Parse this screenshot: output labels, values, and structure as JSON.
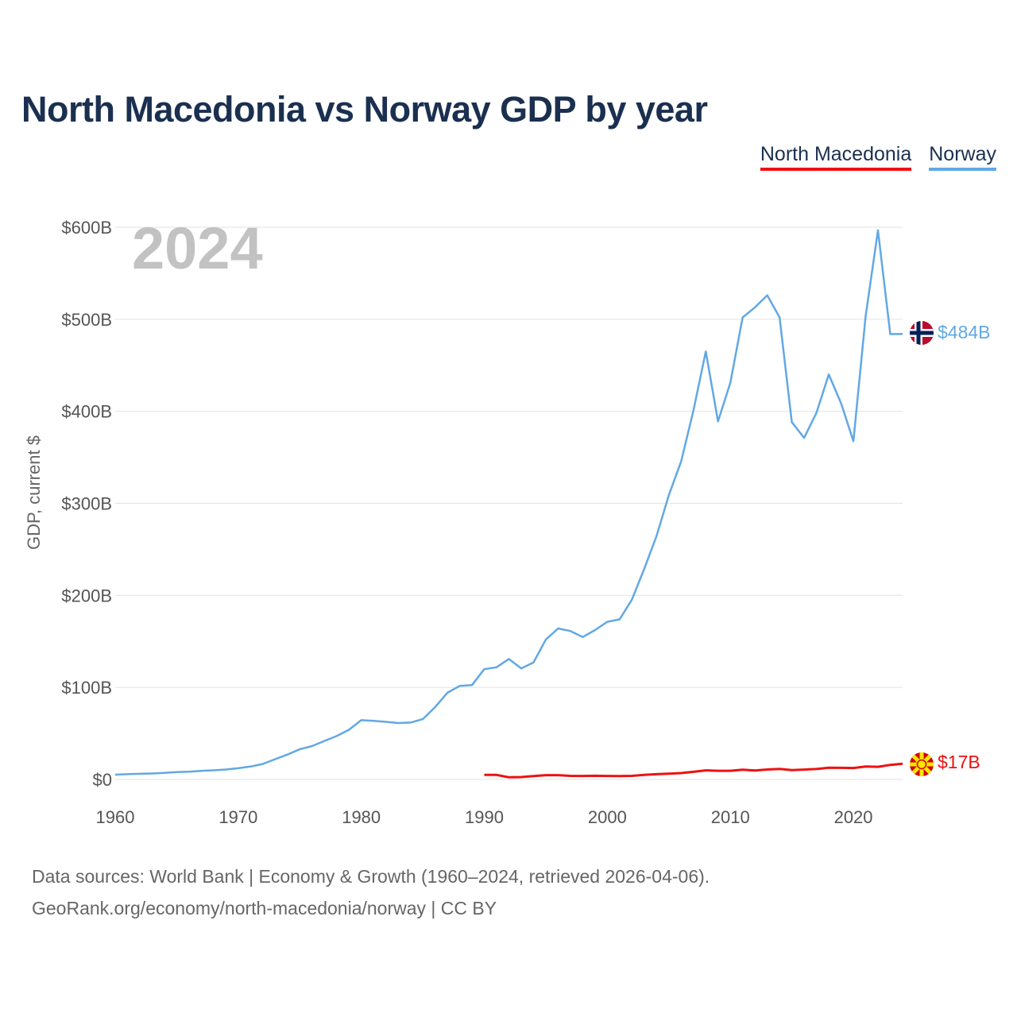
{
  "title": "North Macedonia vs Norway GDP by year",
  "chart_data": {
    "type": "line",
    "title": "North Macedonia vs Norway GDP by year",
    "ylabel": "GDP, current $",
    "xlabel": "",
    "current_year_label": "2024",
    "xlim": [
      1960,
      2024
    ],
    "ylim": [
      0,
      600
    ],
    "y_unit": "billion US$",
    "x_ticks": [
      1960,
      1970,
      1980,
      1990,
      2000,
      2010,
      2020
    ],
    "x_tick_labels": [
      "1960",
      "1970",
      "1980",
      "1990",
      "2000",
      "2010",
      "2020"
    ],
    "y_ticks": [
      0,
      100,
      200,
      300,
      400,
      500,
      600
    ],
    "y_tick_labels": [
      "$0",
      "$100B",
      "$200B",
      "$300B",
      "$400B",
      "$500B",
      "$600B"
    ],
    "grid": true,
    "legend_position": "top-right",
    "series": [
      {
        "name": "North Macedonia",
        "color": "#ee1111",
        "end_label": "$17B",
        "flag_icon": "north-macedonia-flag-icon",
        "x": [
          1990,
          1991,
          1992,
          1993,
          1994,
          1995,
          1996,
          1997,
          1998,
          1999,
          2000,
          2001,
          2002,
          2003,
          2004,
          2005,
          2006,
          2007,
          2008,
          2009,
          2010,
          2011,
          2012,
          2013,
          2014,
          2015,
          2016,
          2017,
          2018,
          2019,
          2020,
          2021,
          2022,
          2023,
          2024
        ],
        "values": [
          5.0,
          4.9,
          2.3,
          2.6,
          3.6,
          4.7,
          4.7,
          3.9,
          3.8,
          4.0,
          3.8,
          3.7,
          3.9,
          4.9,
          5.7,
          6.3,
          6.9,
          8.3,
          9.8,
          9.4,
          9.4,
          10.5,
          9.7,
          10.8,
          11.4,
          10.1,
          10.7,
          11.3,
          12.7,
          12.6,
          12.4,
          14.0,
          13.7,
          15.8,
          17.0
        ]
      },
      {
        "name": "Norway",
        "color": "#62a8e5",
        "end_label": "$484B",
        "flag_icon": "norway-flag-icon",
        "x": [
          1960,
          1961,
          1962,
          1963,
          1964,
          1965,
          1966,
          1967,
          1968,
          1969,
          1970,
          1971,
          1972,
          1973,
          1974,
          1975,
          1976,
          1977,
          1978,
          1979,
          1980,
          1981,
          1982,
          1983,
          1984,
          1985,
          1986,
          1987,
          1988,
          1989,
          1990,
          1991,
          1992,
          1993,
          1994,
          1995,
          1996,
          1997,
          1998,
          1999,
          2000,
          2001,
          2002,
          2003,
          2004,
          2005,
          2006,
          2007,
          2008,
          2009,
          2010,
          2011,
          2012,
          2013,
          2014,
          2015,
          2016,
          2017,
          2018,
          2019,
          2020,
          2021,
          2022,
          2023,
          2024
        ],
        "values": [
          5.2,
          5.7,
          6.1,
          6.5,
          7.1,
          7.9,
          8.5,
          9.3,
          9.9,
          10.8,
          12.2,
          14.0,
          16.8,
          22.0,
          27.0,
          32.8,
          36.3,
          41.8,
          47.1,
          54.0,
          64.4,
          63.6,
          62.6,
          61.3,
          61.8,
          65.5,
          78.6,
          94.2,
          101.6,
          102.5,
          119.8,
          121.9,
          130.9,
          120.6,
          127.2,
          152.0,
          164.0,
          161.3,
          154.7,
          162.3,
          171.3,
          174.0,
          195.4,
          228.7,
          264.4,
          308.9,
          345.6,
          401.0,
          465.0,
          389.0,
          431.0,
          502.0,
          513.0,
          526.0,
          502.0,
          388.2,
          371.1,
          398.4,
          440.0,
          408.7,
          367.6,
          503.4,
          596.6,
          483.9,
          484.0
        ]
      }
    ]
  },
  "source_line1": "Data sources: World Bank | Economy & Growth (1960–2024, retrieved 2026-04-06).",
  "source_line2": "GeoRank.org/economy/north-macedonia/norway | CC BY"
}
